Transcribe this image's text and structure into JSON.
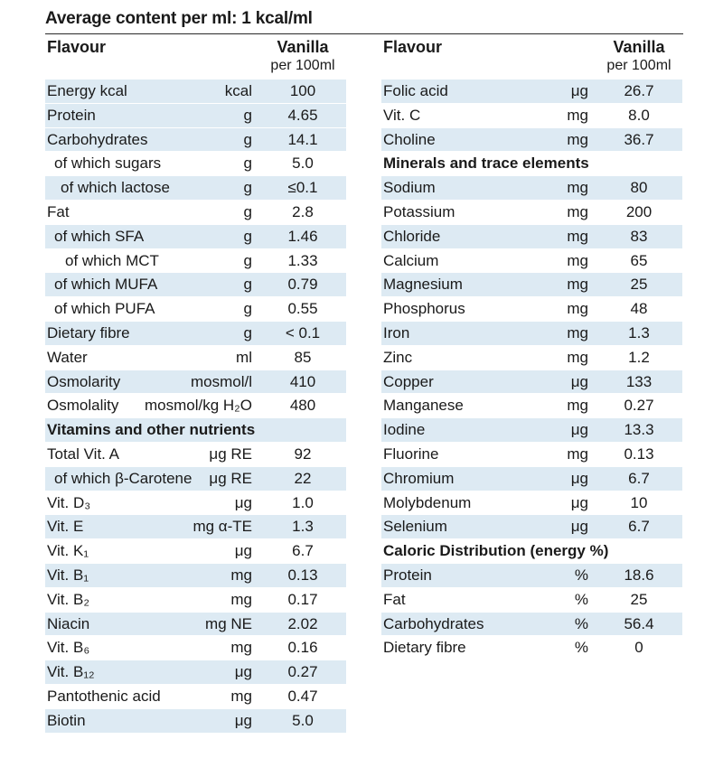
{
  "title": "Average content per ml: 1 kcal/ml",
  "header": {
    "flavour_label": "Flavour",
    "flavour_name": "Vanilla",
    "per_unit": "per 100ml"
  },
  "left_rows": [
    {
      "label": "Energy kcal",
      "unit": "kcal",
      "value": "100",
      "indent": 0,
      "shaded": true
    },
    {
      "label": "Protein",
      "unit": "g",
      "value": "4.65",
      "indent": 0,
      "shaded": true
    },
    {
      "label": "Carbohydrates",
      "unit": "g",
      "value": "14.1",
      "indent": 0,
      "shaded": true
    },
    {
      "label": "of which sugars",
      "unit": "g",
      "value": "5.0",
      "indent": 1,
      "shaded": false
    },
    {
      "label": "of which lactose",
      "unit": "g",
      "value": "≤0.1",
      "indent": 2,
      "shaded": true
    },
    {
      "label": "Fat",
      "unit": "g",
      "value": "2.8",
      "indent": 0,
      "shaded": false
    },
    {
      "label": "of which SFA",
      "unit": "g",
      "value": "1.46",
      "indent": 1,
      "shaded": true
    },
    {
      "label": "of which MCT",
      "unit": "g",
      "value": "1.33",
      "indent": 3,
      "shaded": false
    },
    {
      "label": "of which MUFA",
      "unit": "g",
      "value": "0.79",
      "indent": 1,
      "shaded": true
    },
    {
      "label": "of which PUFA",
      "unit": "g",
      "value": "0.55",
      "indent": 1,
      "shaded": false
    },
    {
      "label": "Dietary fibre",
      "unit": "g",
      "value": "< 0.1",
      "indent": 0,
      "shaded": true
    },
    {
      "label": "Water",
      "unit": "ml",
      "value": "85",
      "indent": 0,
      "shaded": false
    },
    {
      "label": "Osmolarity",
      "unit": "mosmol/l",
      "value": "410",
      "indent": 0,
      "shaded": true
    },
    {
      "label": "Osmolality",
      "unit": "mosmol/kg H₂O",
      "value": "480",
      "indent": 0,
      "shaded": false
    },
    {
      "label": "Vitamins and other nutrients",
      "unit": "",
      "value": "",
      "indent": 0,
      "shaded": true,
      "section": true
    },
    {
      "label": "Total Vit. A",
      "unit": "μg RE",
      "value": "92",
      "indent": 0,
      "shaded": false
    },
    {
      "label": "of which β-Carotene",
      "unit": "μg RE",
      "value": "22",
      "indent": 1,
      "shaded": true
    },
    {
      "label": "Vit. D₃",
      "unit": "μg",
      "value": "1.0",
      "indent": 0,
      "shaded": false
    },
    {
      "label": "Vit. E",
      "unit": "mg α-TE",
      "value": "1.3",
      "indent": 0,
      "shaded": true
    },
    {
      "label": "Vit. K₁",
      "unit": "μg",
      "value": "6.7",
      "indent": 0,
      "shaded": false
    },
    {
      "label": "Vit. B₁",
      "unit": "mg",
      "value": "0.13",
      "indent": 0,
      "shaded": true
    },
    {
      "label": "Vit. B₂",
      "unit": "mg",
      "value": "0.17",
      "indent": 0,
      "shaded": false
    },
    {
      "label": "Niacin",
      "unit": "mg NE",
      "value": "2.02",
      "indent": 0,
      "shaded": true
    },
    {
      "label": "Vit. B₆",
      "unit": "mg",
      "value": "0.16",
      "indent": 0,
      "shaded": false
    },
    {
      "label": "Vit. B₁₂",
      "unit": "μg",
      "value": "0.27",
      "indent": 0,
      "shaded": true
    },
    {
      "label": "Pantothenic acid",
      "unit": "mg",
      "value": "0.47",
      "indent": 0,
      "shaded": false
    },
    {
      "label": "Biotin",
      "unit": "μg",
      "value": "5.0",
      "indent": 0,
      "shaded": true
    }
  ],
  "right_rows": [
    {
      "label": "Folic acid",
      "unit": "μg",
      "value": "26.7",
      "indent": 0,
      "shaded": true
    },
    {
      "label": "Vit. C",
      "unit": "mg",
      "value": "8.0",
      "indent": 0,
      "shaded": false
    },
    {
      "label": "Choline",
      "unit": "mg",
      "value": "36.7",
      "indent": 0,
      "shaded": true
    },
    {
      "label": "Minerals and trace elements",
      "unit": "",
      "value": "",
      "indent": 0,
      "shaded": false,
      "section": true
    },
    {
      "label": "Sodium",
      "unit": "mg",
      "value": "80",
      "indent": 0,
      "shaded": true
    },
    {
      "label": "Potassium",
      "unit": "mg",
      "value": "200",
      "indent": 0,
      "shaded": false
    },
    {
      "label": "Chloride",
      "unit": "mg",
      "value": "83",
      "indent": 0,
      "shaded": true
    },
    {
      "label": "Calcium",
      "unit": "mg",
      "value": "65",
      "indent": 0,
      "shaded": false
    },
    {
      "label": "Magnesium",
      "unit": "mg",
      "value": "25",
      "indent": 0,
      "shaded": true
    },
    {
      "label": "Phosphorus",
      "unit": "mg",
      "value": "48",
      "indent": 0,
      "shaded": false
    },
    {
      "label": "Iron",
      "unit": "mg",
      "value": "1.3",
      "indent": 0,
      "shaded": true
    },
    {
      "label": "Zinc",
      "unit": "mg",
      "value": "1.2",
      "indent": 0,
      "shaded": false
    },
    {
      "label": "Copper",
      "unit": "μg",
      "value": "133",
      "indent": 0,
      "shaded": true
    },
    {
      "label": "Manganese",
      "unit": "mg",
      "value": "0.27",
      "indent": 0,
      "shaded": false
    },
    {
      "label": "Iodine",
      "unit": "μg",
      "value": "13.3",
      "indent": 0,
      "shaded": true
    },
    {
      "label": "Fluorine",
      "unit": "mg",
      "value": "0.13",
      "indent": 0,
      "shaded": false
    },
    {
      "label": "Chromium",
      "unit": "μg",
      "value": "6.7",
      "indent": 0,
      "shaded": true
    },
    {
      "label": "Molybdenum",
      "unit": "μg",
      "value": "10",
      "indent": 0,
      "shaded": false
    },
    {
      "label": "Selenium",
      "unit": "μg",
      "value": "6.7",
      "indent": 0,
      "shaded": true
    },
    {
      "label": "Caloric Distribution (energy %)",
      "unit": "",
      "value": "",
      "indent": 0,
      "shaded": false,
      "section": true
    },
    {
      "label": "Protein",
      "unit": "%",
      "value": "18.6",
      "indent": 0,
      "shaded": true
    },
    {
      "label": "Fat",
      "unit": "%",
      "value": "25",
      "indent": 0,
      "shaded": false
    },
    {
      "label": "Carbohydrates",
      "unit": "%",
      "value": "56.4",
      "indent": 0,
      "shaded": true
    },
    {
      "label": "Dietary fibre",
      "unit": "%",
      "value": "0",
      "indent": 0,
      "shaded": false
    }
  ]
}
